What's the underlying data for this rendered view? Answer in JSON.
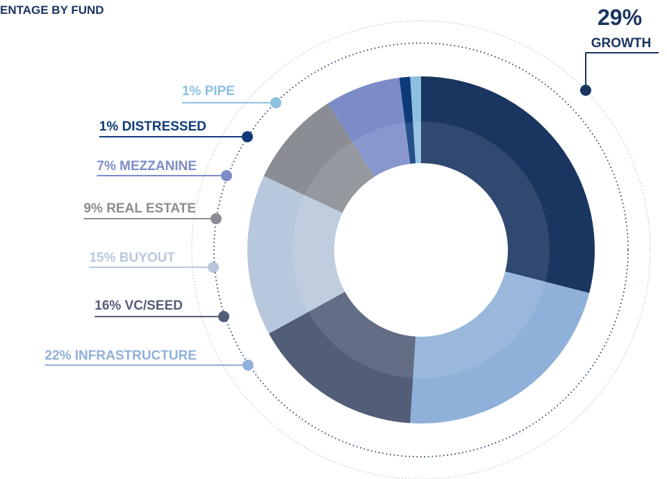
{
  "chart_data": {
    "type": "donut",
    "title": "ENTAGE BY FUND",
    "categories": [
      "GROWTH",
      "INFRASTRUCTURE",
      "VC/SEED",
      "BUYOUT",
      "REAL ESTATE",
      "MEZZANINE",
      "DISTRESSED",
      "PIPE"
    ],
    "values": [
      29,
      22,
      16,
      15,
      9,
      7,
      1,
      1
    ],
    "value_labels": [
      "29%",
      "22%",
      "16%",
      "15%",
      "9%",
      "7%",
      "1%",
      "1%"
    ],
    "colors": [
      "#1a3560",
      "#8fb0d8",
      "#525d78",
      "#b8c8dc",
      "#8a8d94",
      "#7b8cc8",
      "#0e3a7a",
      "#8ec0e0"
    ]
  }
}
